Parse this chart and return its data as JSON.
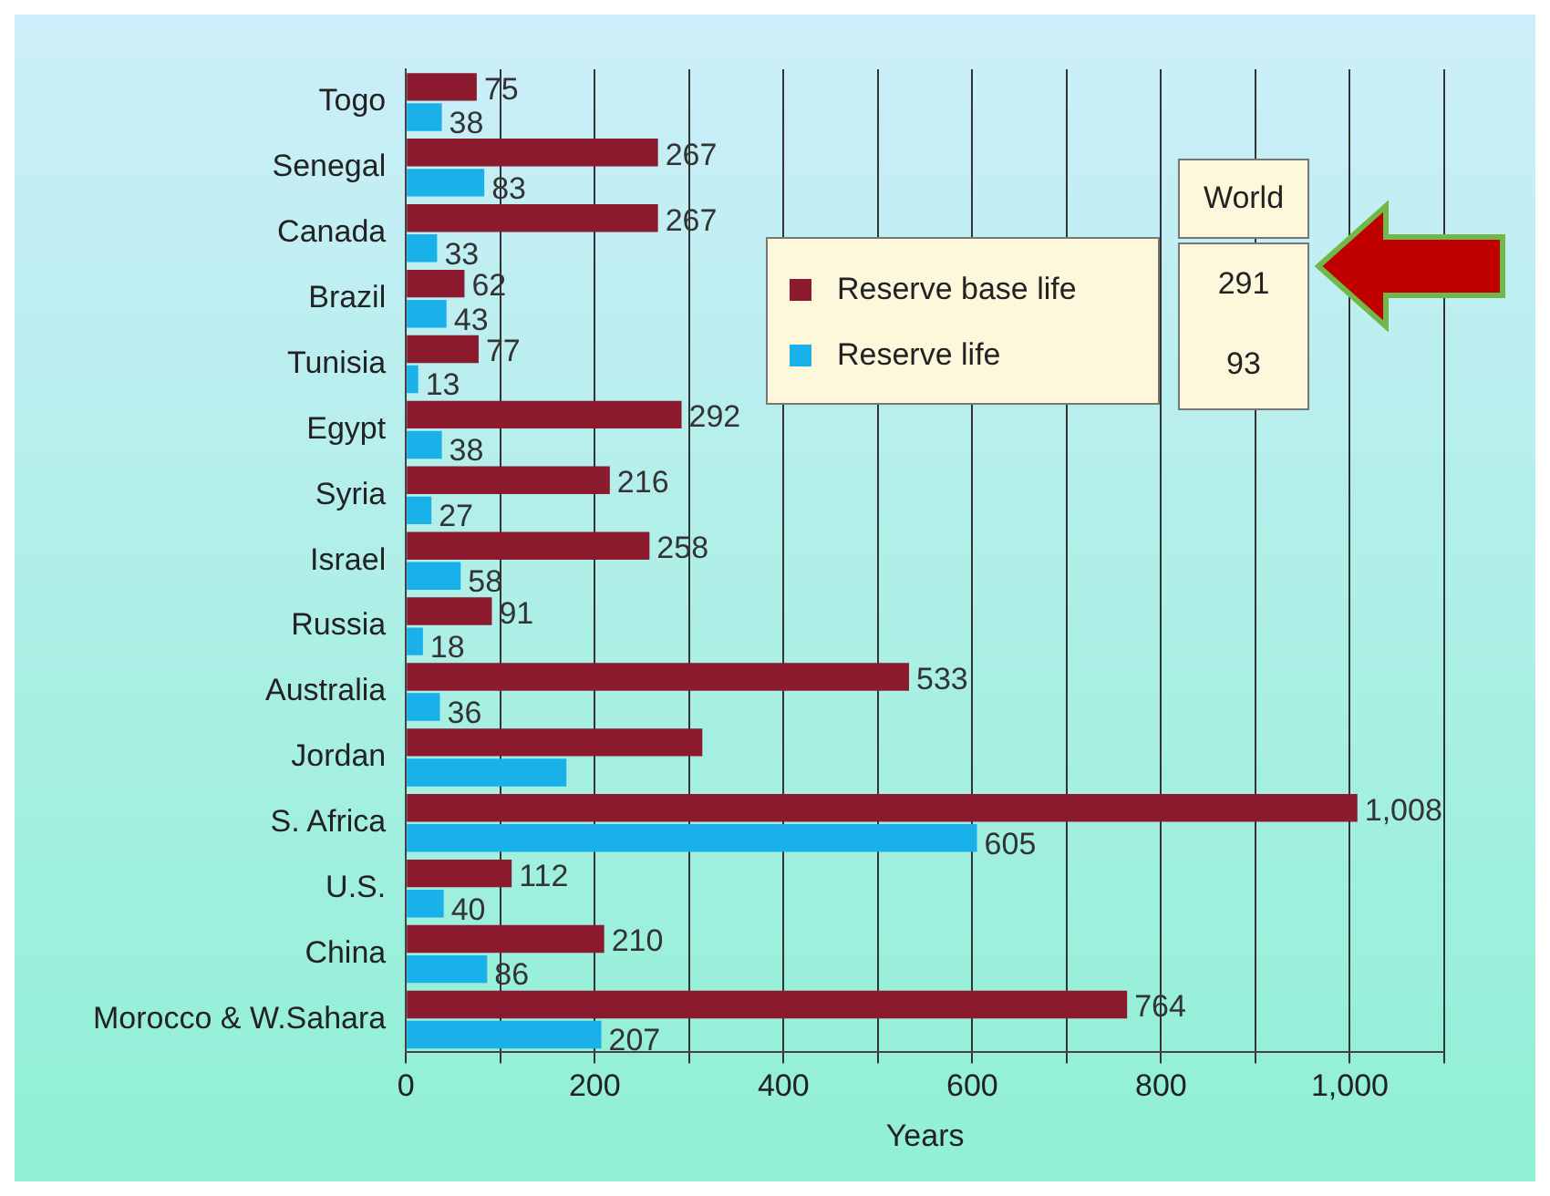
{
  "chart_data": {
    "type": "bar",
    "orientation": "horizontal",
    "xlabel": "Years",
    "categories": [
      "Togo",
      "Senegal",
      "Canada",
      "Brazil",
      "Tunisia",
      "Egypt",
      "Syria",
      "Israel",
      "Russia",
      "Australia",
      "Jordan",
      "S. Africa",
      "U.S.",
      "China",
      "Morocco & W.Sahara"
    ],
    "series": [
      {
        "name": "Reserve base life",
        "color": "#8b1a2e",
        "values": [
          75,
          267,
          267,
          62,
          77,
          292,
          216,
          258,
          91,
          533,
          314,
          1008,
          112,
          210,
          764
        ],
        "value_labels": [
          "75",
          "267",
          "267",
          "62",
          "77",
          "292",
          "216",
          "258",
          "91",
          "533",
          null,
          "1,008",
          "112",
          "210",
          "764"
        ]
      },
      {
        "name": "Reserve life",
        "color": "#1ab0ea",
        "values": [
          38,
          83,
          33,
          43,
          13,
          38,
          27,
          58,
          18,
          36,
          170,
          605,
          40,
          86,
          207
        ],
        "value_labels": [
          "38",
          "83",
          "33",
          "43",
          "13",
          "38",
          "27",
          "58",
          "18",
          "36",
          null,
          "605",
          "40",
          "86",
          "207"
        ]
      }
    ],
    "xlim": [
      0,
      1100
    ],
    "xticks": [
      0,
      {
        "value": 100,
        "label": null
      },
      200,
      {
        "value": 300,
        "label": null
      },
      400,
      {
        "value": 500,
        "label": null
      },
      600,
      {
        "value": 700,
        "label": null
      },
      800,
      {
        "value": 900,
        "label": null
      },
      {
        "value": 1000,
        "label": "1,000"
      },
      {
        "value": 1100,
        "label": null
      }
    ],
    "grid": "x",
    "legend": "top right",
    "annotations": [
      "World",
      "291",
      "93"
    ]
  }
}
